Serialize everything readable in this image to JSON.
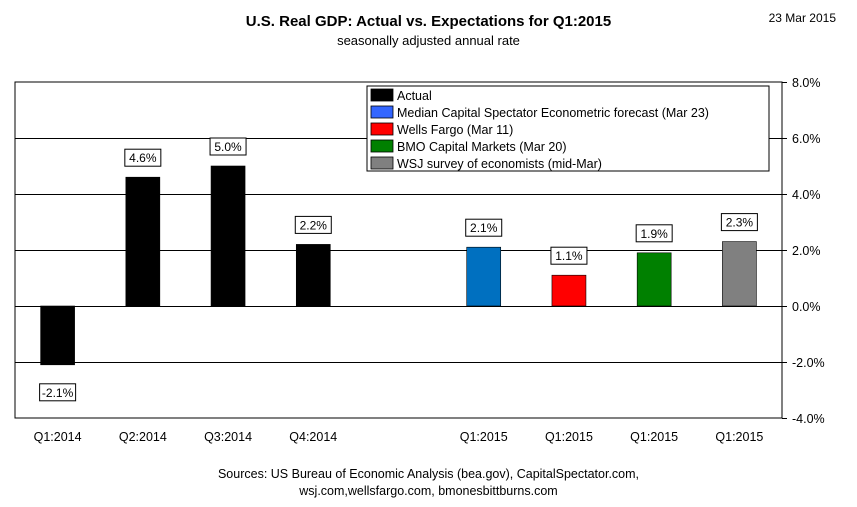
{
  "date": "23 Mar 2015",
  "sources_line1": "Sources: US Bureau of Economic Analysis (bea.gov), CapitalSpectator.com,",
  "sources_line2": "wsj.com,wellsfargo.com,  bmonesbittburns.com",
  "chart_data": {
    "type": "bar",
    "title": "U.S. Real GDP: Actual vs. Expectations for Q1:2015",
    "subtitle": "seasonally adjusted annual rate",
    "xlabel": "",
    "ylabel": "",
    "ylim": [
      -4.0,
      8.0
    ],
    "yticks": [
      8.0,
      6.0,
      4.0,
      2.0,
      0.0,
      -2.0,
      -4.0
    ],
    "ytick_labels": [
      "8.0%",
      "6.0%",
      "4.0%",
      "2.0%",
      "0.0%",
      "-2.0%",
      "-4.0%"
    ],
    "y_axis_side": "right",
    "grid": true,
    "legend_position": "top-right",
    "categories": [
      "Q1:2014",
      "Q2:2014",
      "Q3:2014",
      "Q4:2014",
      "",
      "Q1:2015",
      "Q1:2015",
      "Q1:2015",
      "Q1:2015"
    ],
    "values": [
      -2.1,
      4.6,
      5.0,
      2.2,
      null,
      2.1,
      1.1,
      1.9,
      2.3
    ],
    "data_labels": [
      "-2.1%",
      "4.6%",
      "5.0%",
      "2.2%",
      "",
      "2.1%",
      "1.1%",
      "1.9%",
      "2.3%"
    ],
    "bar_colors": [
      "#000000",
      "#000000",
      "#000000",
      "#000000",
      "",
      "#0070C0",
      "#FF0000",
      "#008000",
      "#808080"
    ],
    "series": [
      {
        "name": "Actual",
        "color": "#000000"
      },
      {
        "name": "Median  Capital Spectator Econometric forecast (Mar 23)",
        "color": "#3366FF"
      },
      {
        "name": "Wells Fargo (Mar 11)",
        "color": "#FF0000"
      },
      {
        "name": "BMO Capital Markets (Mar 20)",
        "color": "#008000"
      },
      {
        "name": "WSJ survey of economists (mid-Mar)",
        "color": "#808080"
      }
    ]
  }
}
